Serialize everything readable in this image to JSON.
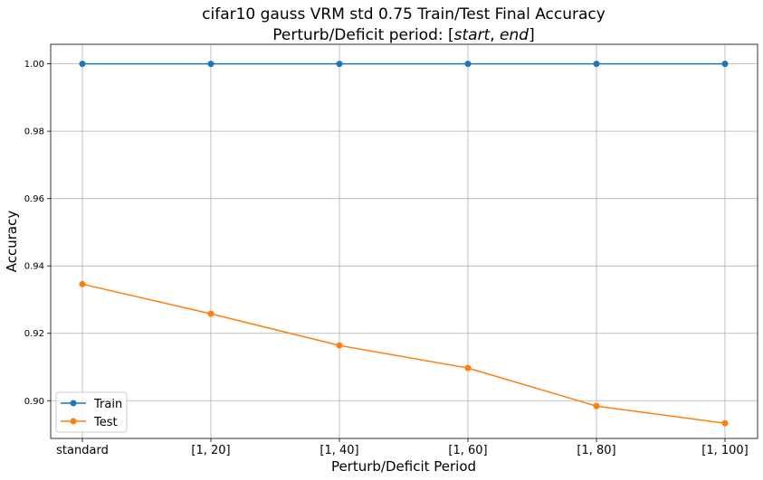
{
  "chart_data": {
    "type": "line",
    "title_line1": "cifar10 gauss VRM std 0.75 Train/Test Final Accuracy",
    "title_line2_prefix": "Perturb/Deficit period: [",
    "title_line2_start": "start",
    "title_line2_sep": ", ",
    "title_line2_end": "end",
    "title_line2_suffix": "]",
    "xlabel": "Perturb/Deficit Period",
    "ylabel": "Accuracy",
    "categories": [
      "standard",
      "[1, 20]",
      "[1, 40]",
      "[1, 60]",
      "[1, 80]",
      "[1, 100]"
    ],
    "series": [
      {
        "name": "Train",
        "color": "#1f77b4",
        "values": [
          1.0,
          1.0,
          1.0,
          1.0,
          1.0,
          1.0
        ]
      },
      {
        "name": "Test",
        "color": "#ff7f0e",
        "values": [
          0.9346,
          0.9258,
          0.9164,
          0.9097,
          0.8984,
          0.8933
        ]
      }
    ],
    "ylim": [
      0.8888,
      1.0058
    ],
    "yticks": [
      0.9,
      0.92,
      0.94,
      0.96,
      0.98,
      1.0
    ],
    "ytick_labels": [
      "0.90",
      "0.92",
      "0.94",
      "0.96",
      "0.98",
      "1.00"
    ],
    "grid": true,
    "legend_position": "lower-left"
  }
}
